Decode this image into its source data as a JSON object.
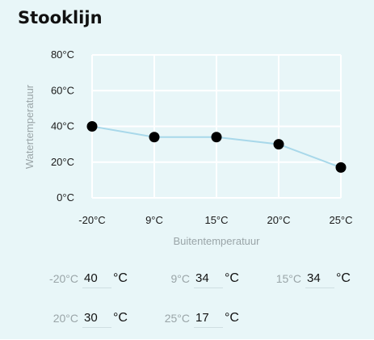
{
  "title": "Stooklijn",
  "chart_data": {
    "type": "line",
    "x_categories": [
      "-20°C",
      "9°C",
      "15°C",
      "20°C",
      "25°C"
    ],
    "values": [
      40,
      34,
      34,
      30,
      17
    ],
    "y_ticks": [
      {
        "value": 0,
        "label": "0°C"
      },
      {
        "value": 20,
        "label": "20°C"
      },
      {
        "value": 40,
        "label": "40°C"
      },
      {
        "value": 60,
        "label": "60°C"
      },
      {
        "value": 80,
        "label": "80°C"
      }
    ],
    "ylim": [
      0,
      80
    ],
    "xlabel": "Buitentemperatuur",
    "ylabel": "Watertemperatuur",
    "grid": true,
    "line_color": "#a8d8ea",
    "point_color": "#000000"
  },
  "settings": [
    {
      "label": "-20°C",
      "value": "40",
      "unit": "°C"
    },
    {
      "label": "9°C",
      "value": "34",
      "unit": "°C"
    },
    {
      "label": "15°C",
      "value": "34",
      "unit": "°C"
    },
    {
      "label": "20°C",
      "value": "30",
      "unit": "°C"
    },
    {
      "label": "25°C",
      "value": "17",
      "unit": "°C"
    }
  ],
  "colors": {
    "background": "#e8f6f8",
    "label_muted": "#9aa5a8"
  }
}
